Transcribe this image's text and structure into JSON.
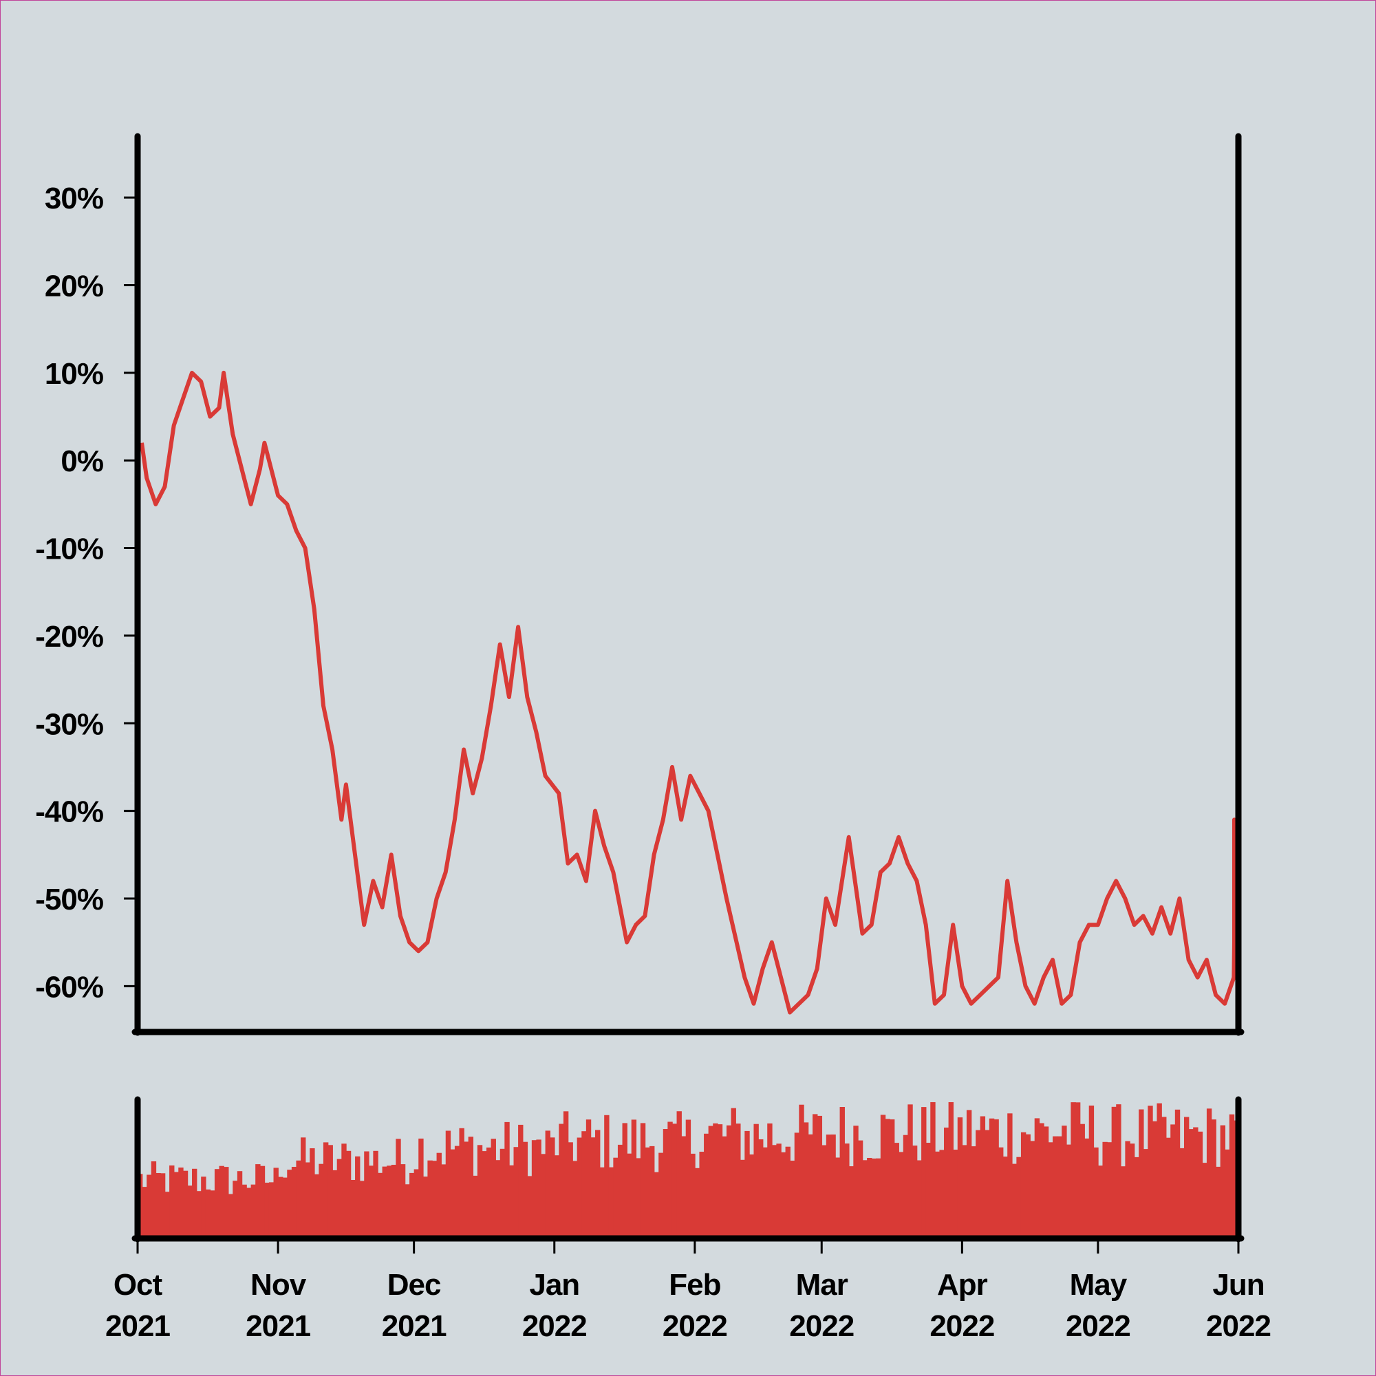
{
  "chart_data": [
    {
      "type": "line",
      "panel": "price-return",
      "title": "",
      "xlabel": "",
      "ylabel": "",
      "x_range": [
        "2021-10-01",
        "2022-06-01"
      ],
      "ylim": [
        -65,
        37
      ],
      "y_ticks": [
        30,
        20,
        10,
        0,
        -10,
        -20,
        -30,
        -40,
        -50,
        -60
      ],
      "y_tick_labels": [
        "30%",
        "20%",
        "10%",
        "0%",
        "-10%",
        "-20%",
        "-30%",
        "-40%",
        "-50%",
        "-60%"
      ],
      "grid": false,
      "series": [
        {
          "color": "#d93a36",
          "points": [
            [
              "2021-10-01",
              2
            ],
            [
              "2021-10-03",
              -2
            ],
            [
              "2021-10-05",
              -5
            ],
            [
              "2021-10-07",
              -3
            ],
            [
              "2021-10-09",
              4
            ],
            [
              "2021-10-11",
              7
            ],
            [
              "2021-10-13",
              10
            ],
            [
              "2021-10-15",
              9
            ],
            [
              "2021-10-17",
              5
            ],
            [
              "2021-10-19",
              6
            ],
            [
              "2021-10-20",
              10
            ],
            [
              "2021-10-22",
              3
            ],
            [
              "2021-10-25",
              -3
            ],
            [
              "2021-10-26",
              -5
            ],
            [
              "2021-10-28",
              -1
            ],
            [
              "2021-10-29",
              2
            ],
            [
              "2021-11-01",
              -4
            ],
            [
              "2021-11-03",
              -5
            ],
            [
              "2021-11-05",
              -8
            ],
            [
              "2021-11-07",
              -10
            ],
            [
              "2021-11-09",
              -17
            ],
            [
              "2021-11-11",
              -28
            ],
            [
              "2021-11-13",
              -33
            ],
            [
              "2021-11-15",
              -41
            ],
            [
              "2021-11-16",
              -37
            ],
            [
              "2021-11-18",
              -45
            ],
            [
              "2021-11-20",
              -53
            ],
            [
              "2021-11-22",
              -48
            ],
            [
              "2021-11-24",
              -51
            ],
            [
              "2021-11-26",
              -45
            ],
            [
              "2021-11-28",
              -52
            ],
            [
              "2021-11-30",
              -55
            ],
            [
              "2021-12-02",
              -56
            ],
            [
              "2021-12-04",
              -55
            ],
            [
              "2021-12-06",
              -50
            ],
            [
              "2021-12-08",
              -47
            ],
            [
              "2021-12-10",
              -41
            ],
            [
              "2021-12-12",
              -33
            ],
            [
              "2021-12-14",
              -38
            ],
            [
              "2021-12-16",
              -34
            ],
            [
              "2021-12-18",
              -28
            ],
            [
              "2021-12-20",
              -21
            ],
            [
              "2021-12-22",
              -27
            ],
            [
              "2021-12-24",
              -19
            ],
            [
              "2021-12-26",
              -27
            ],
            [
              "2021-12-28",
              -31
            ],
            [
              "2021-12-30",
              -36
            ],
            [
              "2022-01-02",
              -38
            ],
            [
              "2022-01-04",
              -46
            ],
            [
              "2022-01-06",
              -45
            ],
            [
              "2022-01-08",
              -48
            ],
            [
              "2022-01-10",
              -40
            ],
            [
              "2022-01-12",
              -44
            ],
            [
              "2022-01-14",
              -47
            ],
            [
              "2022-01-17",
              -55
            ],
            [
              "2022-01-19",
              -53
            ],
            [
              "2022-01-21",
              -52
            ],
            [
              "2022-01-23",
              -45
            ],
            [
              "2022-01-25",
              -41
            ],
            [
              "2022-01-27",
              -35
            ],
            [
              "2022-01-29",
              -41
            ],
            [
              "2022-01-31",
              -36
            ],
            [
              "2022-02-02",
              -38
            ],
            [
              "2022-02-04",
              -40
            ],
            [
              "2022-02-08",
              -50
            ],
            [
              "2022-02-12",
              -59
            ],
            [
              "2022-02-14",
              -62
            ],
            [
              "2022-02-16",
              -58
            ],
            [
              "2022-02-18",
              -55
            ],
            [
              "2022-02-20",
              -59
            ],
            [
              "2022-02-22",
              -63
            ],
            [
              "2022-02-24",
              -62
            ],
            [
              "2022-02-26",
              -61
            ],
            [
              "2022-02-28",
              -58
            ],
            [
              "2022-03-02",
              -50
            ],
            [
              "2022-03-04",
              -53
            ],
            [
              "2022-03-07",
              -43
            ],
            [
              "2022-03-10",
              -54
            ],
            [
              "2022-03-12",
              -53
            ],
            [
              "2022-03-14",
              -47
            ],
            [
              "2022-03-16",
              -46
            ],
            [
              "2022-03-18",
              -43
            ],
            [
              "2022-03-20",
              -46
            ],
            [
              "2022-03-22",
              -48
            ],
            [
              "2022-03-24",
              -53
            ],
            [
              "2022-03-26",
              -62
            ],
            [
              "2022-03-28",
              -61
            ],
            [
              "2022-03-30",
              -53
            ],
            [
              "2022-04-01",
              -60
            ],
            [
              "2022-04-03",
              -62
            ],
            [
              "2022-04-05",
              -61
            ],
            [
              "2022-04-07",
              -60
            ],
            [
              "2022-04-09",
              -59
            ],
            [
              "2022-04-11",
              -48
            ],
            [
              "2022-04-13",
              -55
            ],
            [
              "2022-04-15",
              -60
            ],
            [
              "2022-04-17",
              -62
            ],
            [
              "2022-04-19",
              -59
            ],
            [
              "2022-04-21",
              -57
            ],
            [
              "2022-04-23",
              -62
            ],
            [
              "2022-04-25",
              -61
            ],
            [
              "2022-04-27",
              -55
            ],
            [
              "2022-04-29",
              -53
            ],
            [
              "2022-05-01",
              -53
            ],
            [
              "2022-05-03",
              -50
            ],
            [
              "2022-05-05",
              -48
            ],
            [
              "2022-05-07",
              -50
            ],
            [
              "2022-05-09",
              -53
            ],
            [
              "2022-05-11",
              -52
            ],
            [
              "2022-05-13",
              -54
            ],
            [
              "2022-05-15",
              -51
            ],
            [
              "2022-05-17",
              -54
            ],
            [
              "2022-05-19",
              -50
            ],
            [
              "2022-05-21",
              -57
            ],
            [
              "2022-05-23",
              -59
            ],
            [
              "2022-05-25",
              -57
            ],
            [
              "2022-05-27",
              -61
            ],
            [
              "2022-05-29",
              -62
            ],
            [
              "2022-05-31",
              -59
            ],
            [
              "2022-06-02",
              -55
            ],
            [
              "2022-06-04",
              -50
            ],
            [
              "2022-06-06",
              -48
            ],
            [
              "2022-06-08",
              -45
            ],
            [
              "2022-06-09",
              -41
            ],
            [
              "2022-06-10",
              -46
            ]
          ]
        }
      ]
    },
    {
      "type": "bar",
      "panel": "volume",
      "title": "",
      "xlabel": "",
      "ylabel": "",
      "x_range": [
        "2021-10-01",
        "2022-06-01"
      ],
      "x_ticks": [
        "2021-10-01",
        "2021-11-01",
        "2021-12-01",
        "2022-01-01",
        "2022-02-01",
        "2022-03-01",
        "2022-04-01",
        "2022-05-01",
        "2022-06-01"
      ],
      "x_tick_labels": [
        [
          "Oct",
          "2021"
        ],
        [
          "Nov",
          "2021"
        ],
        [
          "Dec",
          "2021"
        ],
        [
          "Jan",
          "2022"
        ],
        [
          "Feb",
          "2022"
        ],
        [
          "Mar",
          "2022"
        ],
        [
          "Apr",
          "2022"
        ],
        [
          "May",
          "2022"
        ],
        [
          "Jun",
          "2022"
        ]
      ],
      "y_ticks": [],
      "ylim": [
        0,
        1
      ],
      "color": "#d93a36",
      "monthly_level": {
        "2021-10": 0.45,
        "2021-11": 0.6,
        "2021-12": 0.7,
        "2022-01": 0.75,
        "2022-02": 0.8,
        "2022-03": 0.82,
        "2022-04": 0.83,
        "2022-05": 0.8
      }
    }
  ]
}
